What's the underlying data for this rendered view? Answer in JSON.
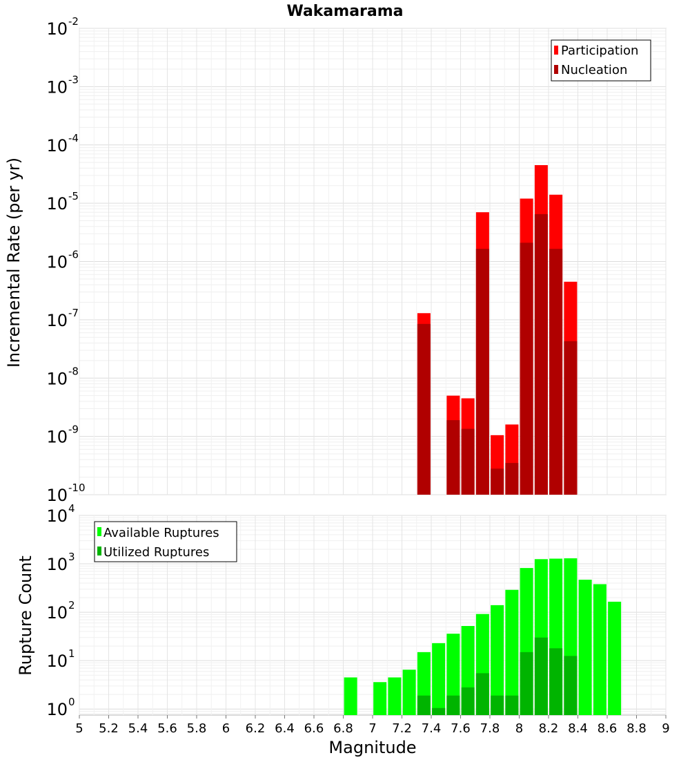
{
  "chart_data": [
    {
      "type": "bar",
      "title": "Wakamarama",
      "ylabel": "Incremental Rate (per yr)",
      "xlabel": "",
      "xlim": [
        5,
        9
      ],
      "ylim": [
        1e-10,
        0.01
      ],
      "y_scale": "log",
      "grid": true,
      "legend_position": "top-right",
      "y_ticks": [
        {
          "base": "10",
          "exp": "-10"
        },
        {
          "base": "10",
          "exp": "-9"
        },
        {
          "base": "10",
          "exp": "-8"
        },
        {
          "base": "10",
          "exp": "-7"
        },
        {
          "base": "10",
          "exp": "-6"
        },
        {
          "base": "10",
          "exp": "-5"
        },
        {
          "base": "10",
          "exp": "-4"
        },
        {
          "base": "10",
          "exp": "-3"
        },
        {
          "base": "10",
          "exp": "-2"
        }
      ],
      "x": [
        7.35,
        7.55,
        7.65,
        7.75,
        7.85,
        7.95,
        8.05,
        8.15,
        8.25,
        8.35
      ],
      "series": [
        {
          "name": "Participation",
          "color": "#ff0000",
          "values": [
            1.3e-07,
            5e-09,
            4.5e-09,
            7e-06,
            1.05e-09,
            1.6e-09,
            1.2e-05,
            4.5e-05,
            1.4e-05,
            4.5e-07
          ]
        },
        {
          "name": "Nucleation",
          "color": "#b00000",
          "values": [
            8.5e-08,
            1.9e-09,
            1.35e-09,
            1.65e-06,
            2.8e-10,
            3.5e-10,
            2.1e-06,
            6.5e-06,
            1.65e-06,
            4.3e-08
          ]
        }
      ]
    },
    {
      "type": "bar",
      "title": "",
      "ylabel": "Rupture Count",
      "xlabel": "Magnitude",
      "xlim": [
        5,
        9
      ],
      "ylim": [
        0.75,
        10000
      ],
      "y_scale": "log",
      "grid": true,
      "legend_position": "top-left",
      "y_ticks": [
        {
          "base": "10",
          "exp": "0"
        },
        {
          "base": "10",
          "exp": "1"
        },
        {
          "base": "10",
          "exp": "2"
        },
        {
          "base": "10",
          "exp": "3"
        },
        {
          "base": "10",
          "exp": "4"
        }
      ],
      "x_tick_labels": [
        "5",
        "5.2",
        "5.4",
        "5.6",
        "5.8",
        "6",
        "6.2",
        "6.4",
        "6.6",
        "6.8",
        "7",
        "7.2",
        "7.4",
        "7.6",
        "7.8",
        "8",
        "8.2",
        "8.4",
        "8.6",
        "8.8",
        "9"
      ],
      "x": [
        6.85,
        7.05,
        7.15,
        7.25,
        7.35,
        7.45,
        7.55,
        7.65,
        7.75,
        7.85,
        7.95,
        8.05,
        8.15,
        8.25,
        8.35,
        8.45,
        8.55,
        8.65
      ],
      "series": [
        {
          "name": "Available Ruptures",
          "color": "#00ff00",
          "values": [
            4.5,
            3.6,
            4.5,
            6.5,
            15,
            23,
            36,
            52,
            92,
            140,
            290,
            820,
            1250,
            1280,
            1300,
            470,
            380,
            165
          ]
        },
        {
          "name": "Utilized Ruptures",
          "color": "#00b400",
          "values": [
            0,
            0,
            0,
            0,
            1.9,
            1.05,
            1.9,
            2.8,
            5.5,
            1.9,
            1.9,
            15,
            30,
            18,
            12.5,
            0,
            0,
            0
          ]
        }
      ]
    }
  ]
}
